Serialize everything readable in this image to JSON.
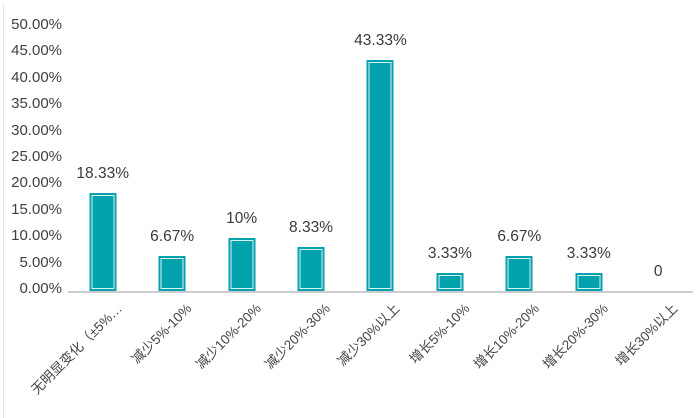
{
  "chart_data": {
    "type": "bar",
    "title": "",
    "xlabel": "",
    "ylabel": "",
    "categories": [
      "无明显变化（±5%…",
      "减少5%-10%",
      "减少10%-20%",
      "减少20%-30%",
      "减少30%以上",
      "增长5%-10%",
      "增长10%-20%",
      "增长20%-30%",
      "增长30%以上"
    ],
    "values": [
      18.33,
      6.67,
      10,
      8.33,
      43.33,
      3.33,
      6.67,
      3.33,
      0
    ],
    "data_labels": [
      "18.33%",
      "6.67%",
      "10%",
      "8.33%",
      "43.33%",
      "3.33%",
      "6.67%",
      "3.33%",
      "0"
    ],
    "y_ticks": [
      "0.00%",
      "5.00%",
      "10.00%",
      "15.00%",
      "20.00%",
      "25.00%",
      "30.00%",
      "35.00%",
      "40.00%",
      "45.00%",
      "50.00%"
    ],
    "ylim": [
      0,
      50
    ],
    "y_step": 5,
    "grid": "off",
    "legend": "none",
    "x_label_rotation_deg": -45,
    "bar_color": "#04a2ad",
    "bar_highlight_color": "#ffffff",
    "axis_line_color": "#cccccc",
    "text_color": "#3f3f3f"
  }
}
